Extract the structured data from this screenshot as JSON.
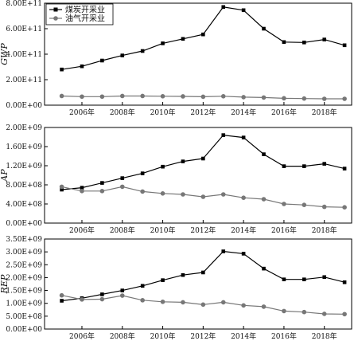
{
  "chart_data": [
    {
      "type": "line",
      "ylabel": "GWP",
      "ylim": [
        0,
        800000000000
      ],
      "yticks": [
        0,
        200000000000,
        400000000000,
        600000000000,
        800000000000
      ],
      "ytick_labels": [
        "0.00E+00",
        "2.00E+11",
        "4.00E+11",
        "6.00E+11",
        "8.00E+11"
      ],
      "x": [
        2005,
        2006,
        2007,
        2008,
        2009,
        2010,
        2011,
        2012,
        2013,
        2014,
        2015,
        2016,
        2017,
        2018,
        2019
      ],
      "xticks": [
        2006,
        2008,
        2010,
        2012,
        2014,
        2016,
        2018
      ],
      "xtick_labels": [
        "2006年",
        "2008年",
        "2010年",
        "2012年",
        "2014年",
        "2016年",
        "2018年"
      ],
      "legend": "top-left",
      "series": [
        {
          "name": "煤炭开采业",
          "marker": "square",
          "color": "#000000",
          "values": [
            280000000000,
            305000000000,
            350000000000,
            390000000000,
            425000000000,
            485000000000,
            520000000000,
            555000000000,
            770000000000,
            745000000000,
            600000000000,
            495000000000,
            492000000000,
            515000000000,
            470000000000
          ]
        },
        {
          "name": "油气开采业",
          "marker": "circle",
          "color": "#777777",
          "values": [
            72000000000,
            67000000000,
            67000000000,
            72000000000,
            72000000000,
            70000000000,
            69000000000,
            66000000000,
            70000000000,
            63000000000,
            60000000000,
            54000000000,
            52000000000,
            50000000000,
            50000000000
          ]
        }
      ]
    },
    {
      "type": "line",
      "ylabel": "AP",
      "ylim": [
        0,
        2000000000
      ],
      "yticks": [
        0,
        400000000,
        800000000,
        1200000000,
        1600000000,
        2000000000
      ],
      "ytick_labels": [
        "0.00E+00",
        "4.00E+08",
        "8.00E+08",
        "1.20E+09",
        "1.60E+09",
        "2.00E+09"
      ],
      "x": [
        2005,
        2006,
        2007,
        2008,
        2009,
        2010,
        2011,
        2012,
        2013,
        2014,
        2015,
        2016,
        2017,
        2018,
        2019
      ],
      "xticks": [
        2006,
        2008,
        2010,
        2012,
        2014,
        2016,
        2018
      ],
      "xtick_labels": [
        "2006年",
        "2008年",
        "2010年",
        "2012年",
        "2014年",
        "2016年",
        "2018年"
      ],
      "series": [
        {
          "name": "煤炭开采业",
          "marker": "square",
          "color": "#000000",
          "values": [
            700000000,
            740000000,
            840000000,
            940000000,
            1040000000,
            1180000000,
            1290000000,
            1350000000,
            1840000000,
            1790000000,
            1440000000,
            1190000000,
            1190000000,
            1240000000,
            1140000000
          ]
        },
        {
          "name": "油气开采业",
          "marker": "circle",
          "color": "#777777",
          "values": [
            760000000,
            670000000,
            670000000,
            760000000,
            660000000,
            620000000,
            600000000,
            550000000,
            600000000,
            530000000,
            500000000,
            400000000,
            380000000,
            340000000,
            330000000
          ]
        }
      ]
    },
    {
      "type": "line",
      "ylabel": "REP",
      "ylim": [
        0,
        3500000000
      ],
      "yticks": [
        0,
        500000000,
        1000000000,
        1500000000,
        2000000000,
        2500000000,
        3000000000,
        3500000000
      ],
      "ytick_labels": [
        "0.00E+00",
        "5.00E+08",
        "1.00E+09",
        "1.50E+09",
        "2.00E+09",
        "2.50E+09",
        "3.00E+09",
        "3.50E+09"
      ],
      "x": [
        2005,
        2006,
        2007,
        2008,
        2009,
        2010,
        2011,
        2012,
        2013,
        2014,
        2015,
        2016,
        2017,
        2018,
        2019
      ],
      "xticks": [
        2006,
        2008,
        2010,
        2012,
        2014,
        2016,
        2018
      ],
      "xtick_labels": [
        "2006年",
        "2008年",
        "2010年",
        "2012年",
        "2014年",
        "2016年",
        "2018年"
      ],
      "series": [
        {
          "name": "煤炭开采业",
          "marker": "square",
          "color": "#000000",
          "values": [
            1100000000,
            1200000000,
            1350000000,
            1500000000,
            1680000000,
            1900000000,
            2100000000,
            2200000000,
            3020000000,
            2930000000,
            2350000000,
            1930000000,
            1930000000,
            2020000000,
            1820000000
          ]
        },
        {
          "name": "油气开采业",
          "marker": "circle",
          "color": "#777777",
          "values": [
            1310000000,
            1150000000,
            1160000000,
            1300000000,
            1120000000,
            1060000000,
            1040000000,
            950000000,
            1040000000,
            920000000,
            870000000,
            700000000,
            660000000,
            590000000,
            580000000
          ]
        }
      ]
    }
  ]
}
